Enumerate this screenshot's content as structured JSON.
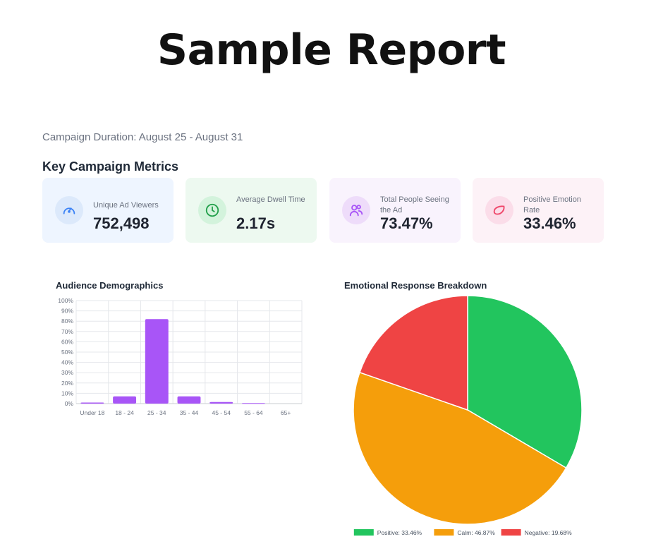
{
  "report": {
    "title": "Sample Report",
    "duration": "Campaign Duration: August 25 - August 31",
    "section_title": "Key Campaign Metrics"
  },
  "metrics": [
    {
      "label": "Unique Ad Viewers",
      "value": "752,498",
      "icon": "gauge-icon",
      "color": "#3b82f6"
    },
    {
      "label": "Average Dwell Time",
      "value": "2.17s",
      "icon": "clock-icon",
      "color": "#22a04b"
    },
    {
      "label": "Total People Seeing the Ad",
      "value": "73.47%",
      "icon": "users-icon",
      "color": "#a855f7"
    },
    {
      "label": "Positive Emotion Rate",
      "value": "33.46%",
      "icon": "heart-icon",
      "color": "#ef4468"
    }
  ],
  "chart_data": [
    {
      "type": "bar",
      "title": "Audience Demographics",
      "categories": [
        "Under 18",
        "18 - 24",
        "25 - 34",
        "35 - 44",
        "45 - 54",
        "55 - 64",
        "65+"
      ],
      "values": [
        1,
        7,
        82,
        7,
        1.5,
        0.5,
        0
      ],
      "ylim": [
        0,
        100
      ],
      "yticks": [
        "0%",
        "10%",
        "20%",
        "30%",
        "40%",
        "50%",
        "60%",
        "70%",
        "80%",
        "90%",
        "100%"
      ],
      "color": "#a855f7",
      "grid": true
    },
    {
      "type": "pie",
      "title": "Emotional Response Breakdown",
      "slices": [
        {
          "name": "Positive",
          "value": 33.46,
          "color": "#22c55e",
          "legend": "Positive: 33.46%"
        },
        {
          "name": "Calm",
          "value": 46.87,
          "color": "#f59e0b",
          "legend": "Calm: 46.87%"
        },
        {
          "name": "Negative",
          "value": 19.68,
          "color": "#ef4444",
          "legend": "Negative: 19.68%"
        }
      ],
      "legend_position": "bottom"
    }
  ]
}
